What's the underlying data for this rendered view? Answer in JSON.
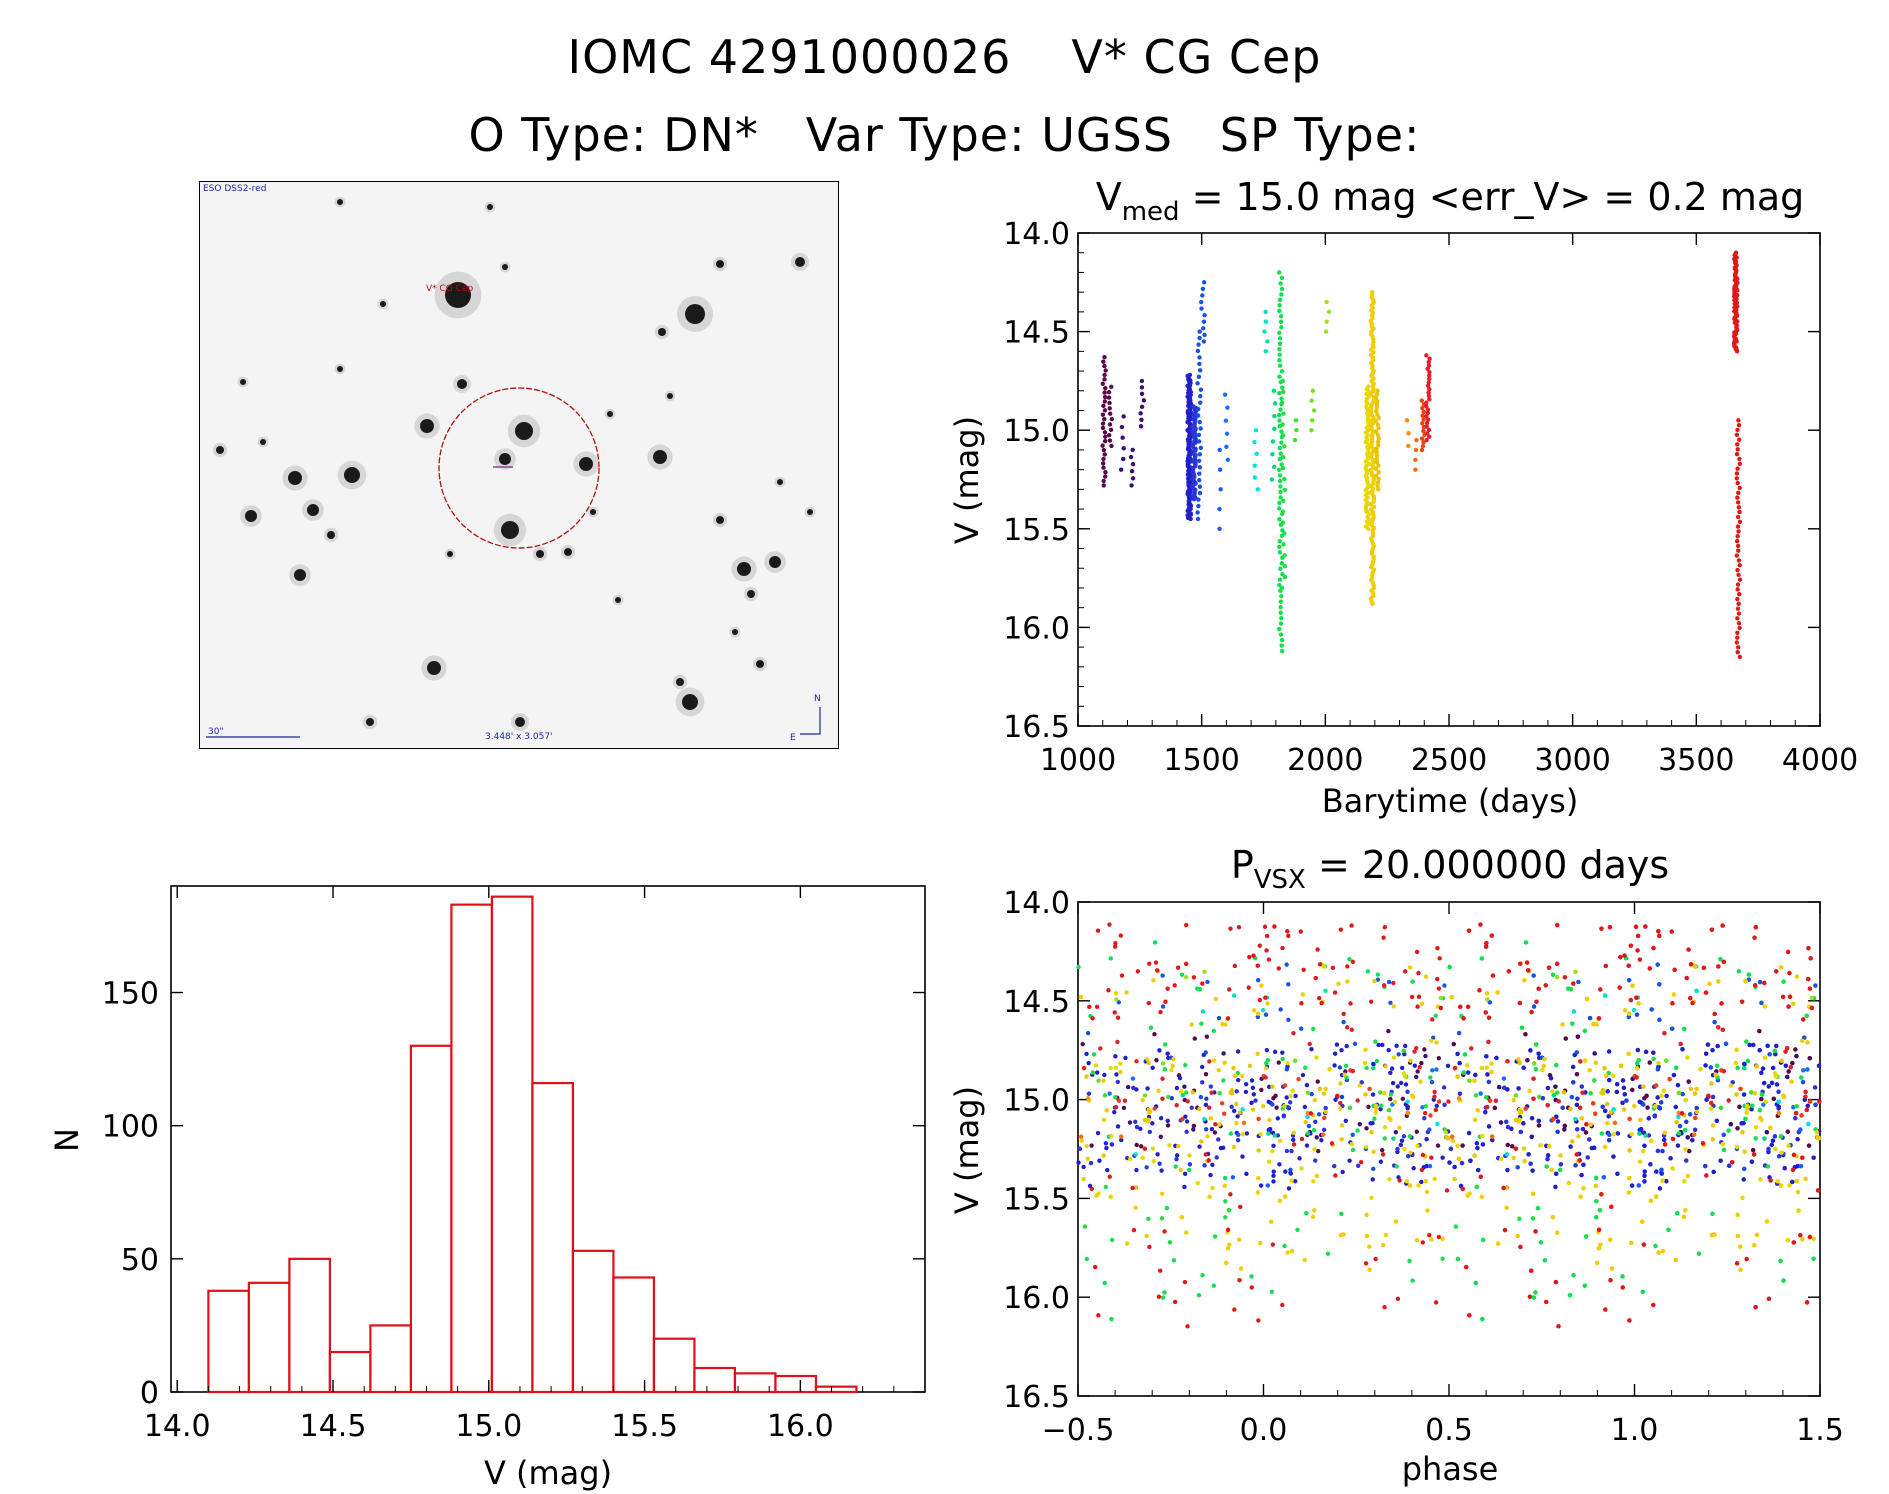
{
  "header": {
    "object_id": "IOMC 4291000026",
    "object_name": "V* CG Cep",
    "otype_label": "O Type:",
    "otype": "DN*",
    "vartype_label": "Var Type:",
    "vartype": "UGSS",
    "sptype_label": "SP Type:",
    "sptype": ""
  },
  "finder": {
    "survey": "ESO DSS2-red",
    "target_label": "V* CG Cep",
    "scale_label": "30\"",
    "fov_label": "3.448' x 3.057'",
    "north": "N",
    "east": "E"
  },
  "colors": {
    "hist_bar": "#e0101a",
    "circle": "#b01010",
    "label_blue": "#1a2a9c",
    "label_red": "#b01010"
  },
  "chart_data": [
    {
      "type": "scatter",
      "id": "light-curve",
      "title_prefix": "V",
      "title_sub": "med",
      "title_rest": " = 15.0 mag  <err_V> = 0.2 mag",
      "xlabel": "Barytime (days)",
      "ylabel": "V (mag)",
      "xlim": [
        1000,
        4000
      ],
      "ylim": [
        16.5,
        14.0
      ],
      "xticks": [
        "1000",
        "1500",
        "2000",
        "2500",
        "3000",
        "3500",
        "4000"
      ],
      "yticks": [
        "14.0",
        "14.5",
        "15.0",
        "15.5",
        "16.0",
        "16.5"
      ],
      "segments": [
        {
          "t": 1105,
          "min": 14.63,
          "max": 15.28,
          "n": 30,
          "color": "#5a0a4a"
        },
        {
          "t": 1130,
          "min": 14.78,
          "max": 15.08,
          "n": 12,
          "color": "#5a0a4a"
        },
        {
          "t": 1180,
          "min": 14.93,
          "max": 15.2,
          "n": 6,
          "color": "#3a1070"
        },
        {
          "t": 1220,
          "min": 15.1,
          "max": 15.28,
          "n": 6,
          "color": "#3a1070"
        },
        {
          "t": 1260,
          "min": 14.75,
          "max": 14.98,
          "n": 8,
          "color": "#3a1070"
        },
        {
          "t": 1450,
          "min": 14.72,
          "max": 15.45,
          "n": 160,
          "color": "#2020cc"
        },
        {
          "t": 1470,
          "min": 14.88,
          "max": 15.35,
          "n": 60,
          "color": "#2b35d8"
        },
        {
          "t": 1490,
          "min": 14.5,
          "max": 15.45,
          "n": 30,
          "color": "#1850e0"
        },
        {
          "t": 1505,
          "min": 14.25,
          "max": 14.55,
          "n": 10,
          "color": "#1555e8"
        },
        {
          "t": 1570,
          "min": 15.1,
          "max": 15.5,
          "n": 5,
          "color": "#1a5cff"
        },
        {
          "t": 1600,
          "min": 14.82,
          "max": 15.15,
          "n": 6,
          "color": "#1a70ff"
        },
        {
          "t": 1720,
          "min": 15.0,
          "max": 15.3,
          "n": 6,
          "color": "#00e0e0"
        },
        {
          "t": 1760,
          "min": 14.4,
          "max": 14.6,
          "n": 5,
          "color": "#00e0c0"
        },
        {
          "t": 1790,
          "min": 14.8,
          "max": 15.25,
          "n": 8,
          "color": "#00d880"
        },
        {
          "t": 1820,
          "min": 14.2,
          "max": 16.12,
          "n": 70,
          "color": "#10e050"
        },
        {
          "t": 1830,
          "min": 14.75,
          "max": 15.8,
          "n": 20,
          "color": "#20e040"
        },
        {
          "t": 1880,
          "min": 14.95,
          "max": 15.05,
          "n": 3,
          "color": "#40e030"
        },
        {
          "t": 1950,
          "min": 14.8,
          "max": 15.0,
          "n": 5,
          "color": "#70e020"
        },
        {
          "t": 2010,
          "min": 14.35,
          "max": 14.5,
          "n": 4,
          "color": "#a0e020"
        },
        {
          "t": 2170,
          "min": 14.78,
          "max": 15.5,
          "n": 60,
          "color": "#e8d800"
        },
        {
          "t": 2190,
          "min": 14.3,
          "max": 15.88,
          "n": 120,
          "color": "#f0cc00"
        },
        {
          "t": 2210,
          "min": 14.8,
          "max": 15.3,
          "n": 30,
          "color": "#e6c600"
        },
        {
          "t": 2330,
          "min": 14.95,
          "max": 15.08,
          "n": 3,
          "color": "#ff8a10"
        },
        {
          "t": 2370,
          "min": 15.05,
          "max": 15.2,
          "n": 4,
          "color": "#ff6a10"
        },
        {
          "t": 2395,
          "min": 14.85,
          "max": 15.1,
          "n": 14,
          "color": "#f04010"
        },
        {
          "t": 2415,
          "min": 14.62,
          "max": 15.05,
          "n": 26,
          "color": "#e0202a"
        },
        {
          "t": 3660,
          "min": 14.1,
          "max": 14.6,
          "n": 80,
          "color": "#e01818"
        },
        {
          "t": 3670,
          "min": 14.95,
          "max": 16.15,
          "n": 50,
          "color": "#e01818"
        }
      ]
    },
    {
      "type": "scatter",
      "id": "phased-curve",
      "title_prefix": "P",
      "title_sub": "VSX",
      "title_rest": " = 20.000000 days",
      "period": 20.0,
      "xlabel": "phase",
      "ylabel": "V (mag)",
      "xlim": [
        -0.5,
        1.5
      ],
      "ylim": [
        16.5,
        14.0
      ],
      "xticks": [
        "−0.5",
        "0.0",
        "0.5",
        "1.0",
        "1.5"
      ],
      "yticks": [
        "14.0",
        "14.5",
        "15.0",
        "15.5",
        "16.0",
        "16.5"
      ]
    },
    {
      "type": "bar",
      "id": "histogram",
      "xlabel": "V (mag)",
      "ylabel": "N",
      "xlim": [
        13.98,
        16.4
      ],
      "ylim": [
        0,
        190
      ],
      "bin_start": 14.1,
      "bin_width": 0.13,
      "values": [
        38,
        41,
        50,
        15,
        25,
        130,
        183,
        186,
        116,
        53,
        43,
        20,
        9,
        7,
        6,
        2
      ],
      "xticks": [
        "14.0",
        "14.5",
        "15.0",
        "15.5",
        "16.0"
      ],
      "yticks": [
        "0",
        "50",
        "100",
        "150"
      ]
    }
  ]
}
